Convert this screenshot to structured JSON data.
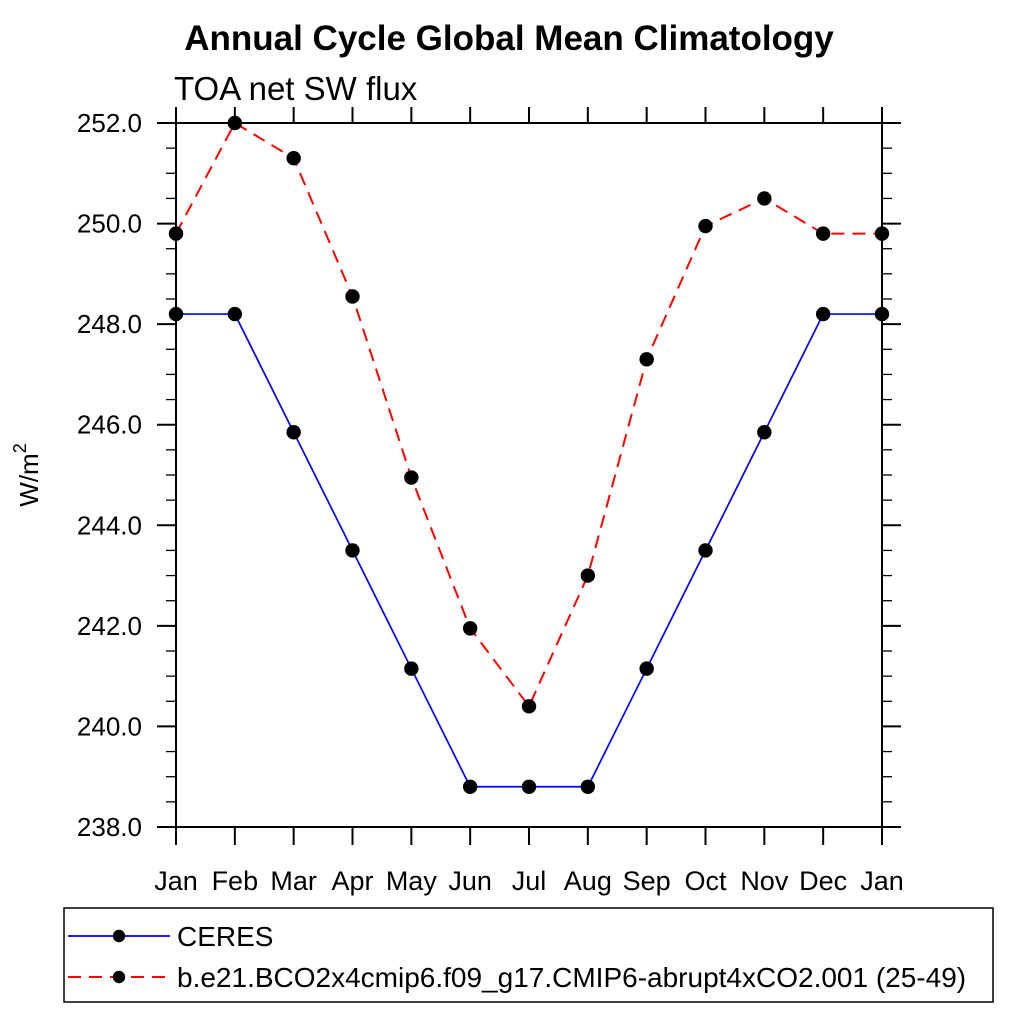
{
  "title": "Annual Cycle Global Mean Climatology",
  "subtitle": "TOA net SW flux",
  "ylabel": {
    "base": "W/m",
    "sup": "2"
  },
  "chart_data": {
    "type": "line",
    "categories": [
      "Jan",
      "Feb",
      "Mar",
      "Apr",
      "May",
      "Jun",
      "Jul",
      "Aug",
      "Sep",
      "Oct",
      "Nov",
      "Dec",
      "Jan"
    ],
    "xlabel": "",
    "ylabel": "W/m^2",
    "ylim": [
      238.0,
      252.0
    ],
    "ytick_major": 2.0,
    "ytick_minor": 0.5,
    "yticks": [
      {
        "value": 238.0,
        "label": "238.0"
      },
      {
        "value": 240.0,
        "label": "240.0"
      },
      {
        "value": 242.0,
        "label": "242.0"
      },
      {
        "value": 244.0,
        "label": "244.0"
      },
      {
        "value": 246.0,
        "label": "246.0"
      },
      {
        "value": 248.0,
        "label": "248.0"
      },
      {
        "value": 250.0,
        "label": "250.0"
      },
      {
        "value": 252.0,
        "label": "252.0"
      }
    ],
    "grid": false,
    "legend_position": "bottom-left-outside",
    "marker_color": "#000000",
    "axis_color": "#000000",
    "series": [
      {
        "name": "CERES",
        "color": "#0000ff",
        "style": "solid",
        "marker": "circle",
        "values": [
          248.2,
          248.2,
          245.85,
          243.5,
          241.15,
          238.8,
          238.8,
          238.8,
          241.15,
          243.5,
          245.85,
          248.2,
          248.2
        ]
      },
      {
        "name": "b.e21.BCO2x4cmip6.f09_g17.CMIP6-abrupt4xCO2.001 (25-49)",
        "color": "#ff0000",
        "style": "dashed",
        "marker": "circle",
        "values": [
          249.8,
          252.0,
          251.3,
          248.55,
          244.95,
          241.95,
          240.4,
          243.0,
          247.3,
          249.95,
          250.5,
          249.8,
          249.8
        ]
      }
    ]
  }
}
